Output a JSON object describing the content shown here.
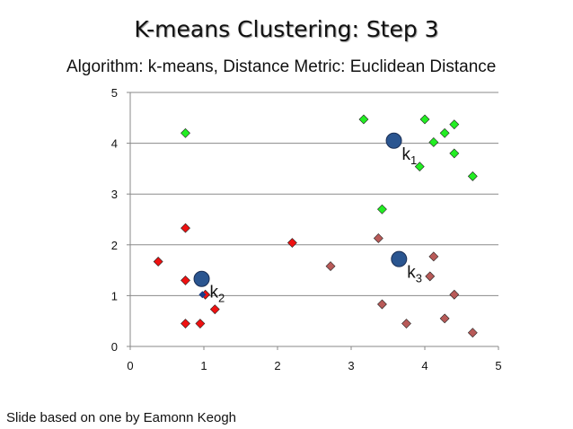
{
  "slide": {
    "title": "K-means Clustering: Step 3",
    "subtitle": "Algorithm: k-means, Distance Metric: Euclidean Distance",
    "footer": "Slide based on one by Eamonn Keogh"
  },
  "chart_data": {
    "type": "scatter",
    "xlim": [
      0,
      5
    ],
    "ylim": [
      0,
      5
    ],
    "x_ticks": [
      0,
      1,
      2,
      3,
      4,
      5
    ],
    "y_ticks": [
      0,
      1,
      2,
      3,
      4,
      5
    ],
    "grid": "horizontal",
    "series": [
      {
        "color": "#22ee22",
        "marker": "diamond",
        "points": [
          [
            0.75,
            4.2
          ],
          [
            3.17,
            4.47
          ],
          [
            4.0,
            4.47
          ],
          [
            4.4,
            4.37
          ],
          [
            4.27,
            4.2
          ],
          [
            4.12,
            4.02
          ],
          [
            4.4,
            3.8
          ],
          [
            3.93,
            3.54
          ],
          [
            4.65,
            3.35
          ],
          [
            3.42,
            2.7
          ]
        ]
      },
      {
        "color": "#ee1111",
        "marker": "diamond",
        "points": [
          [
            0.38,
            1.67
          ],
          [
            0.75,
            2.33
          ],
          [
            0.75,
            1.3
          ],
          [
            1.02,
            1.02
          ],
          [
            1.15,
            0.73
          ],
          [
            0.75,
            0.45
          ],
          [
            0.95,
            0.45
          ],
          [
            2.2,
            2.04
          ]
        ]
      },
      {
        "color": "#b85a58",
        "marker": "diamond",
        "points": [
          [
            3.37,
            2.13
          ],
          [
            2.72,
            1.58
          ],
          [
            4.12,
            1.77
          ],
          [
            4.07,
            1.38
          ],
          [
            4.4,
            1.02
          ],
          [
            3.42,
            0.83
          ],
          [
            3.75,
            0.45
          ],
          [
            4.27,
            0.55
          ],
          [
            4.65,
            0.27
          ]
        ]
      }
    ],
    "centroids": [
      {
        "label": "k",
        "sub": "1",
        "x": 3.58,
        "y": 4.05,
        "color": "#2a5590"
      },
      {
        "label": "k",
        "sub": "2",
        "x": 0.97,
        "y": 1.33,
        "color": "#2a5590"
      },
      {
        "label": "k",
        "sub": "3",
        "x": 3.65,
        "y": 1.72,
        "color": "#2a5590"
      }
    ],
    "extra_marks": [
      {
        "x": 0.98,
        "y": 1.02,
        "color": "#1a3e8a",
        "marker": "diamond-small"
      }
    ]
  }
}
